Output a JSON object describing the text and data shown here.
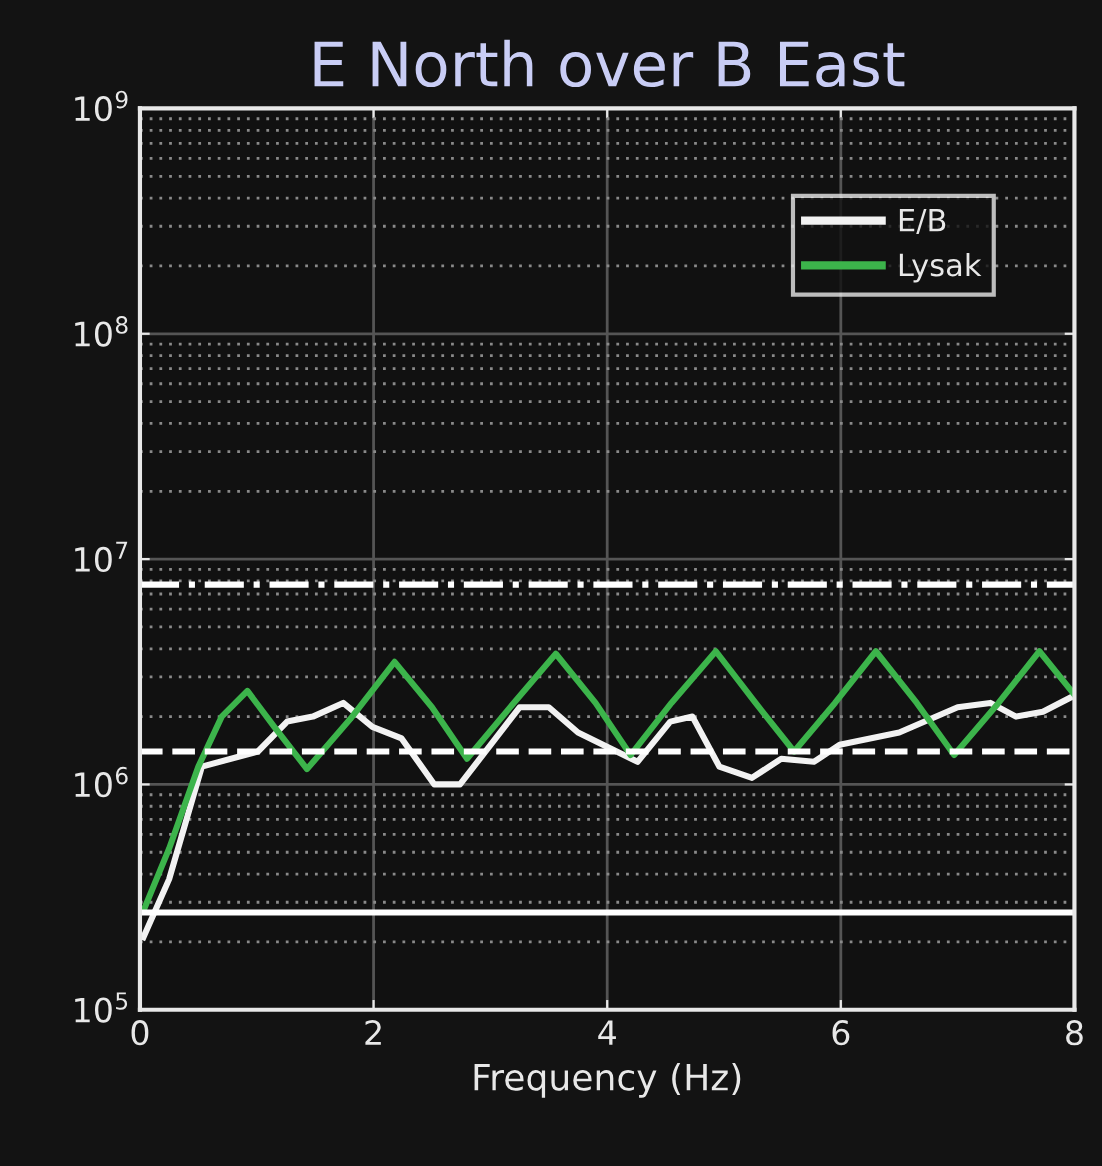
{
  "chart_data": {
    "type": "line",
    "title": "E North over B East",
    "xlabel": "Frequency (Hz)",
    "series": [
      {
        "name": "E/B",
        "color": "#f2f2f2",
        "x": [
          0.03,
          0.25,
          0.53,
          1.01,
          1.26,
          1.48,
          1.74,
          1.99,
          2.24,
          2.52,
          2.74,
          3.25,
          3.5,
          3.75,
          4.26,
          4.54,
          4.73,
          4.96,
          5.24,
          5.49,
          5.77,
          5.99,
          6.5,
          7.0,
          7.28,
          7.5,
          7.73,
          7.98
        ],
        "values": [
          210000,
          380000,
          1200000,
          1400000,
          1900000,
          2000000,
          2300000,
          1800000,
          1600000,
          1000000,
          1000000,
          2200000,
          2200000,
          1700000,
          1260000,
          1900000,
          2000000,
          1200000,
          1070000,
          1300000,
          1260000,
          1500000,
          1700000,
          2200000,
          2300000,
          2000000,
          2100000,
          2450000
        ]
      },
      {
        "name": "Lysak",
        "color": "#3cb44b",
        "x": [
          0.03,
          0.25,
          0.5,
          0.7,
          0.92,
          1.15,
          1.43,
          1.8,
          2.18,
          2.5,
          2.8,
          3.2,
          3.56,
          3.9,
          4.2,
          4.55,
          4.93,
          5.27,
          5.6,
          5.95,
          6.3,
          6.65,
          6.97,
          7.35,
          7.7,
          8.0
        ],
        "values": [
          275000,
          520000,
          1200000,
          2000000,
          2600000,
          1800000,
          1170000,
          1950000,
          3500000,
          2200000,
          1300000,
          2300000,
          3800000,
          2300000,
          1350000,
          2300000,
          3900000,
          2300000,
          1400000,
          2300000,
          3900000,
          2300000,
          1350000,
          2300000,
          3900000,
          2500000
        ]
      }
    ],
    "ref_lines": [
      {
        "axis": "y",
        "value": 7700000,
        "color": "#ffffff",
        "line_style": "dashdot"
      },
      {
        "axis": "y",
        "value": 1400000,
        "color": "#ffffff",
        "line_style": "dashed"
      },
      {
        "axis": "y",
        "value": 270000,
        "color": "#ffffff",
        "line_style": "solid"
      }
    ],
    "xlim": [
      0,
      8
    ],
    "xticks": [
      0,
      2,
      4,
      6,
      8
    ],
    "ylim": [
      100000,
      1000000000
    ],
    "yticks": [
      {
        "value": 100000,
        "label": "10$^{5}$"
      },
      {
        "value": 1000000,
        "label": "10$^{6}$"
      },
      {
        "value": 10000000,
        "label": "10$^{7}$"
      },
      {
        "value": 100000000,
        "label": "10$^{8}$"
      },
      {
        "value": 1000000000,
        "label": "10$^{9}$"
      }
    ],
    "log": "y",
    "grid": true,
    "legend": "top right",
    "line_style": "solid",
    "marker": "none"
  }
}
